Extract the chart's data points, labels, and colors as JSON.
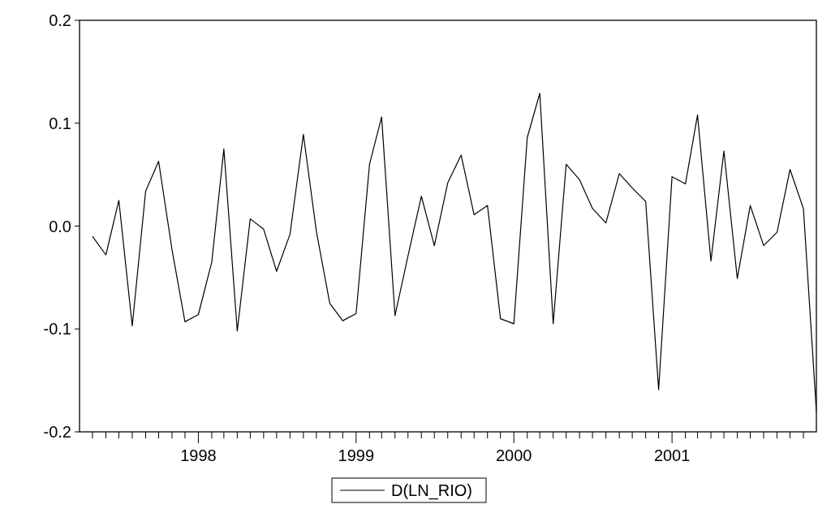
{
  "chart_data": {
    "type": "line",
    "x": [
      "1997-05",
      "1997-06",
      "1997-07",
      "1997-08",
      "1997-09",
      "1997-10",
      "1997-11",
      "1997-12",
      "1998-01",
      "1998-02",
      "1998-03",
      "1998-04",
      "1998-05",
      "1998-06",
      "1998-07",
      "1998-08",
      "1998-09",
      "1998-10",
      "1998-11",
      "1998-12",
      "1999-01",
      "1999-02",
      "1999-03",
      "1999-04",
      "1999-05",
      "1999-06",
      "1999-07",
      "1999-08",
      "1999-09",
      "1999-10",
      "1999-11",
      "1999-12",
      "2000-01",
      "2000-02",
      "2000-03",
      "2000-04",
      "2000-05",
      "2000-06",
      "2000-07",
      "2000-08",
      "2000-09",
      "2000-10",
      "2000-11",
      "2000-12",
      "2001-01",
      "2001-02",
      "2001-03",
      "2001-04",
      "2001-05",
      "2001-06",
      "2001-07",
      "2001-08",
      "2001-09",
      "2001-10",
      "2001-11",
      "2001-12"
    ],
    "series": [
      {
        "name": "D(LN_RIO)",
        "color": "#000000",
        "values": [
          -0.01,
          -0.028,
          0.025,
          -0.097,
          0.034,
          0.063,
          -0.023,
          -0.093,
          -0.086,
          -0.035,
          0.075,
          -0.102,
          0.007,
          -0.003,
          -0.044,
          -0.008,
          0.089,
          -0.005,
          -0.075,
          -0.092,
          -0.085,
          0.06,
          0.106,
          -0.087,
          -0.029,
          0.029,
          -0.019,
          0.042,
          0.069,
          0.011,
          0.02,
          -0.09,
          -0.095,
          0.086,
          0.129,
          -0.095,
          0.06,
          0.045,
          0.017,
          0.003,
          0.051,
          0.037,
          0.024,
          -0.159,
          0.048,
          0.041,
          0.108,
          -0.034,
          0.073,
          -0.051,
          0.02,
          -0.019,
          -0.006,
          0.055,
          0.017,
          -0.18
        ]
      }
    ],
    "xlim": [
      "1997-04",
      "2001-12"
    ],
    "xticks": [
      {
        "value": "1997-05",
        "label": null
      },
      {
        "value": "1997-06",
        "label": null
      },
      {
        "value": "1997-07",
        "label": null
      },
      {
        "value": "1997-08",
        "label": null
      },
      {
        "value": "1997-09",
        "label": null
      },
      {
        "value": "1997-10",
        "label": null
      },
      {
        "value": "1997-11",
        "label": null
      },
      {
        "value": "1997-12",
        "label": null
      },
      {
        "value": "1998-01",
        "label": "1998"
      },
      {
        "value": "1998-02",
        "label": null
      },
      {
        "value": "1998-03",
        "label": null
      },
      {
        "value": "1998-04",
        "label": null
      },
      {
        "value": "1998-05",
        "label": null
      },
      {
        "value": "1998-06",
        "label": null
      },
      {
        "value": "1998-07",
        "label": null
      },
      {
        "value": "1998-08",
        "label": null
      },
      {
        "value": "1998-09",
        "label": null
      },
      {
        "value": "1998-10",
        "label": null
      },
      {
        "value": "1998-11",
        "label": null
      },
      {
        "value": "1998-12",
        "label": null
      },
      {
        "value": "1999-01",
        "label": "1999"
      },
      {
        "value": "1999-02",
        "label": null
      },
      {
        "value": "1999-03",
        "label": null
      },
      {
        "value": "1999-04",
        "label": null
      },
      {
        "value": "1999-05",
        "label": null
      },
      {
        "value": "1999-06",
        "label": null
      },
      {
        "value": "1999-07",
        "label": null
      },
      {
        "value": "1999-08",
        "label": null
      },
      {
        "value": "1999-09",
        "label": null
      },
      {
        "value": "1999-10",
        "label": null
      },
      {
        "value": "1999-11",
        "label": null
      },
      {
        "value": "1999-12",
        "label": null
      },
      {
        "value": "2000-01",
        "label": "2000"
      },
      {
        "value": "2000-02",
        "label": null
      },
      {
        "value": "2000-03",
        "label": null
      },
      {
        "value": "2000-04",
        "label": null
      },
      {
        "value": "2000-05",
        "label": null
      },
      {
        "value": "2000-06",
        "label": null
      },
      {
        "value": "2000-07",
        "label": null
      },
      {
        "value": "2000-08",
        "label": null
      },
      {
        "value": "2000-09",
        "label": null
      },
      {
        "value": "2000-10",
        "label": null
      },
      {
        "value": "2000-11",
        "label": null
      },
      {
        "value": "2000-12",
        "label": null
      },
      {
        "value": "2001-01",
        "label": "2001"
      },
      {
        "value": "2001-02",
        "label": null
      },
      {
        "value": "2001-03",
        "label": null
      },
      {
        "value": "2001-04",
        "label": null
      },
      {
        "value": "2001-05",
        "label": null
      },
      {
        "value": "2001-06",
        "label": null
      },
      {
        "value": "2001-07",
        "label": null
      },
      {
        "value": "2001-08",
        "label": null
      },
      {
        "value": "2001-09",
        "label": null
      },
      {
        "value": "2001-10",
        "label": null
      },
      {
        "value": "2001-11",
        "label": null
      }
    ],
    "ylim": [
      -0.2,
      0.2
    ],
    "yticks": [
      {
        "value": -0.2,
        "label": "-0.2"
      },
      {
        "value": -0.1,
        "label": "-0.1"
      },
      {
        "value": 0,
        "label": "0.0"
      },
      {
        "value": 0.1,
        "label": "0.1"
      },
      {
        "value": 0.2,
        "label": "0.2"
      }
    ],
    "legend": "bottom",
    "grid": false,
    "line_style": "solid",
    "marker": "none"
  }
}
